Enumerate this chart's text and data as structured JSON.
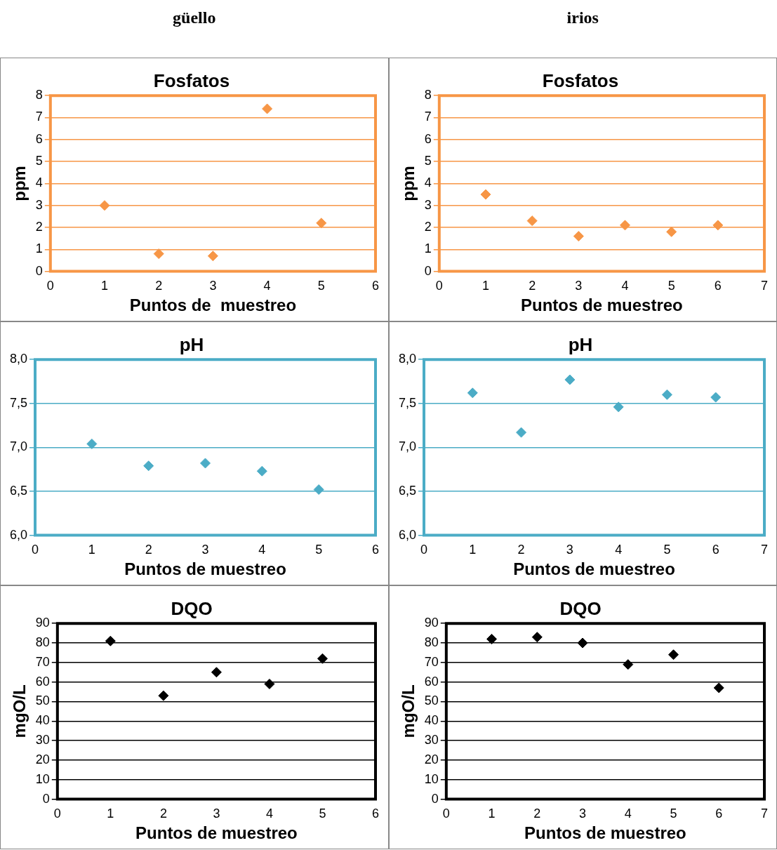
{
  "chart_data": [
    {
      "type": "scatter",
      "title": "Fosfatos",
      "xlabel": "Puntos de  muestreo",
      "ylabel": "ppm",
      "annotations": [
        "güello"
      ],
      "x": [
        1,
        2,
        3,
        4,
        5
      ],
      "series": [
        {
          "color": "#f79646",
          "values": [
            3.0,
            0.8,
            0.7,
            7.4,
            2.2
          ]
        }
      ],
      "xlim": [
        0,
        6
      ],
      "xticks": [
        0,
        1,
        2,
        3,
        4,
        5,
        6
      ],
      "ylim": [
        0,
        8
      ],
      "yticks": [
        0,
        1,
        2,
        3,
        4,
        5,
        6,
        7,
        8
      ],
      "grid": "y",
      "legend": false,
      "marker": "diamond"
    },
    {
      "type": "scatter",
      "title": "Fosfatos",
      "xlabel": "Puntos de muestreo",
      "ylabel": "ppm",
      "annotations": [
        "irios"
      ],
      "x": [
        1,
        2,
        3,
        4,
        5,
        6
      ],
      "series": [
        {
          "color": "#f79646",
          "values": [
            3.5,
            2.3,
            1.6,
            2.1,
            1.8,
            2.1
          ]
        }
      ],
      "xlim": [
        0,
        7
      ],
      "xticks": [
        0,
        1,
        2,
        3,
        4,
        5,
        6,
        7
      ],
      "ylim": [
        0,
        8
      ],
      "yticks": [
        0,
        1,
        2,
        3,
        4,
        5,
        6,
        7,
        8
      ],
      "grid": "y",
      "legend": false,
      "marker": "diamond"
    },
    {
      "type": "scatter",
      "title": "pH",
      "xlabel": "Puntos de muestreo",
      "x": [
        1,
        2,
        3,
        4,
        5
      ],
      "series": [
        {
          "color": "#4bacc6",
          "values": [
            7.04,
            6.79,
            6.82,
            6.73,
            6.52
          ]
        }
      ],
      "xlim": [
        0,
        6
      ],
      "xticks": [
        0,
        1,
        2,
        3,
        4,
        5,
        6
      ],
      "ylim": [
        6,
        8
      ],
      "yticks": [
        {
          "value": 6,
          "label": "6,0"
        },
        {
          "value": 6.5,
          "label": "6,5"
        },
        {
          "value": 7,
          "label": "7,0"
        },
        {
          "value": 7.5,
          "label": "7,5"
        },
        {
          "value": 8,
          "label": "8,0"
        }
      ],
      "grid": "y",
      "legend": false,
      "marker": "diamond"
    },
    {
      "type": "scatter",
      "title": "pH",
      "xlabel": "Puntos de muestreo",
      "x": [
        1,
        2,
        3,
        4,
        5,
        6
      ],
      "series": [
        {
          "color": "#4bacc6",
          "values": [
            7.62,
            7.17,
            7.77,
            7.46,
            7.6,
            7.57
          ]
        }
      ],
      "xlim": [
        0,
        7
      ],
      "xticks": [
        0,
        1,
        2,
        3,
        4,
        5,
        6,
        7
      ],
      "ylim": [
        6,
        8
      ],
      "yticks": [
        {
          "value": 6,
          "label": "6,0"
        },
        {
          "value": 6.5,
          "label": "6,5"
        },
        {
          "value": 7,
          "label": "7,0"
        },
        {
          "value": 7.5,
          "label": "7,5"
        },
        {
          "value": 8,
          "label": "8,0"
        }
      ],
      "grid": "y",
      "legend": false,
      "marker": "diamond"
    },
    {
      "type": "scatter",
      "title": "DQO",
      "xlabel": "Puntos de muestreo",
      "ylabel": "mgO/L",
      "x": [
        1,
        2,
        3,
        4,
        5
      ],
      "series": [
        {
          "color": "#000000",
          "values": [
            81,
            53,
            65,
            59,
            72
          ]
        }
      ],
      "xlim": [
        0,
        6
      ],
      "xticks": [
        0,
        1,
        2,
        3,
        4,
        5,
        6
      ],
      "ylim": [
        0,
        90
      ],
      "yticks": [
        0,
        10,
        20,
        30,
        40,
        50,
        60,
        70,
        80,
        90
      ],
      "grid": "y",
      "legend": false,
      "marker": "diamond"
    },
    {
      "type": "scatter",
      "title": "DQO",
      "xlabel": "Puntos de muestreo",
      "ylabel": "mgO/L",
      "x": [
        1,
        2,
        3,
        4,
        5,
        6
      ],
      "series": [
        {
          "color": "#000000",
          "values": [
            82,
            83,
            80,
            69,
            74,
            57
          ]
        }
      ],
      "xlim": [
        0,
        7
      ],
      "xticks": [
        0,
        1,
        2,
        3,
        4,
        5,
        6,
        7
      ],
      "ylim": [
        0,
        90
      ],
      "yticks": [
        0,
        10,
        20,
        30,
        40,
        50,
        60,
        70,
        80,
        90
      ],
      "grid": "y",
      "legend": false,
      "marker": "diamond"
    }
  ]
}
